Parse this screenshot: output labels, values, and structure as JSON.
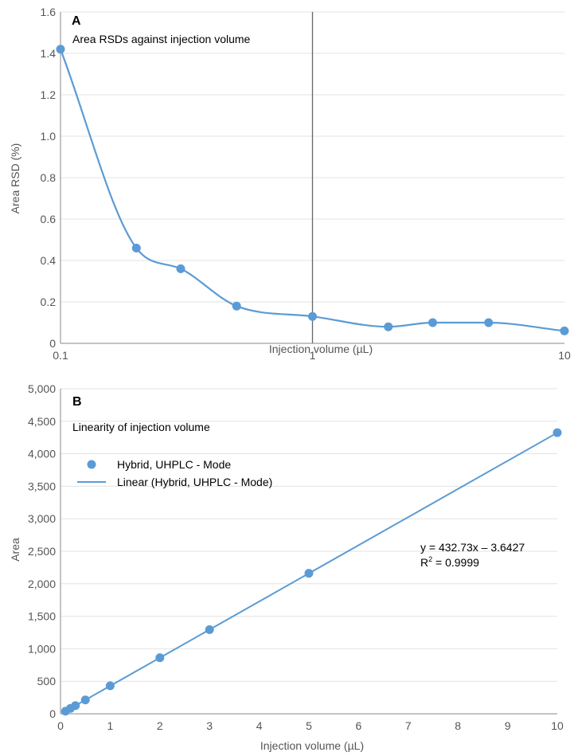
{
  "chart_data": [
    {
      "type": "line",
      "panel_label": "A",
      "title": "Area RSDs against injection volume",
      "xlabel": "Injection volume (µL)",
      "ylabel": "Area RSD (%)",
      "xscale": "log",
      "xlim": [
        0.1,
        10
      ],
      "ylim": [
        0,
        1.6
      ],
      "x_ticks": [
        "0.1",
        "1",
        "10"
      ],
      "y_ticks": [
        "0",
        "0.2",
        "0.4",
        "0.6",
        "0.8",
        "1.0",
        "1.2",
        "1.4",
        "1.6"
      ],
      "grid": "horizontal",
      "smooth": true,
      "series": [
        {
          "x": [
            0.1,
            0.2,
            0.3,
            0.5,
            1,
            2,
            3,
            5,
            10
          ],
          "y": [
            1.42,
            0.46,
            0.36,
            0.18,
            0.13,
            0.08,
            0.1,
            0.1,
            0.06
          ]
        }
      ],
      "reference_line_x": 1,
      "color": "#5b9bd5"
    },
    {
      "type": "scatter",
      "panel_label": "B",
      "title": "Linearity of injection volume",
      "xlabel": "Injection volume (µL)",
      "ylabel": "Area",
      "xlim": [
        0,
        10
      ],
      "ylim": [
        0,
        5000
      ],
      "x_ticks": [
        "0",
        "1",
        "2",
        "3",
        "4",
        "5",
        "6",
        "7",
        "8",
        "9",
        "10"
      ],
      "y_ticks": [
        "0",
        "500",
        "1,000",
        "1,500",
        "2,000",
        "2,500",
        "3,000",
        "3,500",
        "4,000",
        "4,500",
        "5,000"
      ],
      "grid": "horizontal",
      "legend_position": "top-left",
      "series": [
        {
          "name": "Hybrid, UHPLC - Mode",
          "x": [
            0.1,
            0.2,
            0.3,
            0.5,
            1,
            2,
            3,
            5,
            10
          ],
          "y": [
            40,
            83,
            126,
            213,
            430,
            862,
            1294,
            2161,
            4324
          ]
        }
      ],
      "trendline": {
        "name": "Linear (Hybrid, UHPLC - Mode)",
        "slope": 432.73,
        "intercept": -3.6427,
        "equation": "y = 432.73x – 3.6427",
        "r2_prefix": "R",
        "r2_sup": "2",
        "r2_value": " = 0.9999"
      },
      "color": "#5b9bd5"
    }
  ]
}
